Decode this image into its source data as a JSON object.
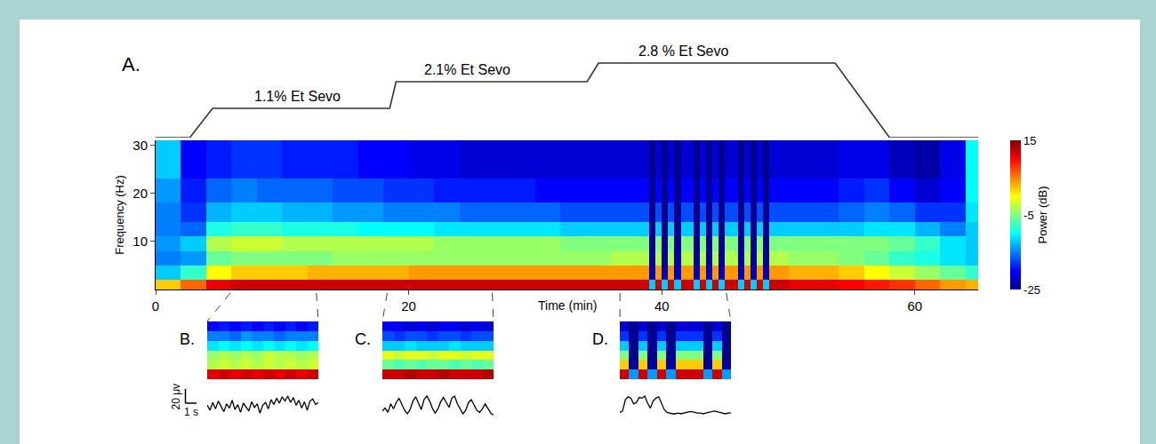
{
  "chart_data": [
    {
      "type": "heatmap",
      "panel_label": "A.",
      "xlabel": "Time (min)",
      "ylabel": "Frequency (Hz)",
      "x_edges": [
        0,
        2,
        4,
        6,
        8,
        10,
        12,
        14,
        16,
        18,
        20,
        22,
        24,
        26,
        28,
        30,
        32,
        34,
        36,
        36.5,
        37,
        37.5,
        38,
        38.5,
        39,
        39.5,
        40,
        40.5,
        41,
        41.5,
        42,
        42.5,
        43,
        43.5,
        44,
        44.5,
        45,
        45.5,
        46,
        46.5,
        47,
        47.5,
        48,
        48.5,
        49,
        49.5,
        50,
        52,
        54,
        56,
        58,
        60,
        62,
        64,
        65
      ],
      "y_edges": [
        0,
        2,
        5,
        8,
        11,
        14,
        18,
        23,
        31
      ],
      "power_db": [
        [
          2,
          -12,
          -15,
          -14,
          -15,
          -15,
          -14,
          -12
        ],
        [
          6,
          -8,
          -14,
          -12,
          -16,
          -18,
          -19,
          -20
        ],
        [
          11,
          0,
          -6,
          -3,
          -9,
          -13,
          -16,
          -19
        ],
        [
          12,
          2,
          -5,
          -2,
          -8,
          -12,
          -15,
          -18
        ],
        [
          12,
          2,
          -5,
          -2,
          -8,
          -12,
          -16,
          -18
        ],
        [
          12,
          2,
          -5,
          -3,
          -9,
          -13,
          -16,
          -19
        ],
        [
          12,
          3,
          -5,
          -3,
          -9,
          -13,
          -16,
          -19
        ],
        [
          12,
          3,
          -4,
          -3,
          -9,
          -14,
          -17,
          -19
        ],
        [
          12,
          3,
          -4,
          -3,
          -10,
          -14,
          -17,
          -20
        ],
        [
          12,
          3,
          -4,
          -3,
          -10,
          -15,
          -18,
          -20
        ],
        [
          12,
          4,
          -4,
          -3,
          -10,
          -15,
          -18,
          -21
        ],
        [
          12,
          4,
          -4,
          -4,
          -11,
          -15,
          -19,
          -21
        ],
        [
          12,
          4,
          -4,
          -4,
          -11,
          -16,
          -19,
          -22
        ],
        [
          12,
          4,
          -4,
          -4,
          -11,
          -16,
          -19,
          -22
        ],
        [
          12,
          4,
          -4,
          -4,
          -11,
          -16,
          -19,
          -22
        ],
        [
          12,
          4,
          -4,
          -4,
          -11,
          -16,
          -20,
          -22
        ],
        [
          12,
          4,
          -4,
          -5,
          -12,
          -17,
          -20,
          -22
        ],
        [
          12,
          4,
          -4,
          -5,
          -12,
          -17,
          -20,
          -22
        ],
        [
          12,
          4,
          -3,
          -5,
          -12,
          -17,
          -20,
          -22
        ],
        [
          12,
          4,
          -3,
          -5,
          -12,
          -17,
          -20,
          -22
        ],
        [
          12,
          4,
          -3,
          -5,
          -12,
          -17,
          -20,
          -22
        ],
        [
          12,
          4,
          -3,
          -5,
          -12,
          -17,
          -20,
          -22
        ],
        [
          12,
          4,
          -3,
          -5,
          -12,
          -17,
          -20,
          -22
        ],
        [
          12,
          4,
          -3,
          -5,
          -12,
          -17,
          -20,
          -22
        ],
        [
          -12,
          -23,
          -24,
          -25,
          -25,
          -25,
          -25,
          -25
        ],
        [
          12,
          4,
          -3,
          -5,
          -12,
          -17,
          -20,
          -22
        ],
        [
          -12,
          -23,
          -24,
          -25,
          -25,
          -25,
          -25,
          -25
        ],
        [
          12,
          4,
          -3,
          -5,
          -12,
          -17,
          -20,
          -22
        ],
        [
          -12,
          -23,
          -24,
          -25,
          -25,
          -25,
          -25,
          -25
        ],
        [
          12,
          4,
          -3,
          -5,
          -12,
          -17,
          -20,
          -22
        ],
        [
          12,
          4,
          -3,
          -5,
          -12,
          -17,
          -20,
          -22
        ],
        [
          -12,
          -23,
          -24,
          -25,
          -25,
          -25,
          -25,
          -25
        ],
        [
          12,
          4,
          -3,
          -5,
          -12,
          -17,
          -20,
          -22
        ],
        [
          -12,
          -23,
          -24,
          -25,
          -25,
          -25,
          -25,
          -25
        ],
        [
          12,
          4,
          -3,
          -5,
          -12,
          -17,
          -20,
          -22
        ],
        [
          -12,
          -23,
          -24,
          -25,
          -25,
          -25,
          -25,
          -25
        ],
        [
          12,
          4,
          -3,
          -5,
          -12,
          -17,
          -20,
          -22
        ],
        [
          12,
          4,
          -3,
          -5,
          -12,
          -17,
          -20,
          -22
        ],
        [
          -12,
          -23,
          -24,
          -25,
          -25,
          -25,
          -25,
          -25
        ],
        [
          12,
          4,
          -3,
          -5,
          -12,
          -17,
          -20,
          -22
        ],
        [
          -12,
          -23,
          -24,
          -25,
          -25,
          -25,
          -25,
          -25
        ],
        [
          12,
          4,
          -3,
          -5,
          -12,
          -17,
          -20,
          -22
        ],
        [
          -12,
          -23,
          -24,
          -25,
          -25,
          -25,
          -25,
          -25
        ],
        [
          12,
          4,
          -3,
          -5,
          -12,
          -17,
          -20,
          -22
        ],
        [
          12,
          4,
          -3,
          -5,
          -12,
          -17,
          -20,
          -22
        ],
        [
          12,
          4,
          -3,
          -5,
          -12,
          -17,
          -20,
          -22
        ],
        [
          11,
          3,
          -4,
          -5,
          -12,
          -17,
          -20,
          -22
        ],
        [
          11,
          3,
          -4,
          -5,
          -12,
          -17,
          -20,
          -22
        ],
        [
          10,
          2,
          -5,
          -5,
          -12,
          -16,
          -19,
          -21
        ],
        [
          9,
          0,
          -6,
          -5,
          -11,
          -15,
          -18,
          -21
        ],
        [
          8,
          -2,
          -8,
          -6,
          -11,
          -16,
          -20,
          -23
        ],
        [
          6,
          -4,
          -9,
          -8,
          -13,
          -18,
          -22,
          -24
        ],
        [
          4,
          -6,
          -11,
          -11,
          -15,
          -18,
          -20,
          -21
        ],
        [
          3,
          -8,
          -12,
          -12,
          -12,
          -11,
          -10,
          -10
        ]
      ],
      "xlim": [
        0,
        65
      ],
      "xticks": [
        0,
        20,
        40,
        60
      ],
      "ylim": [
        0,
        31
      ],
      "yticks": [
        10,
        20,
        30
      ],
      "colorbar": {
        "label": "Power (dB)",
        "zlim": [
          -25,
          15
        ],
        "zticks": [
          -25,
          -5,
          15
        ]
      },
      "concentration": {
        "type": "line",
        "color": "#333333",
        "tick_labels": false,
        "x": [
          0,
          2.7,
          4.5,
          18.5,
          19.0,
          34.1,
          35.0,
          53.7,
          58.0,
          65
        ],
        "values": [
          0,
          0,
          1.1,
          1.1,
          2.1,
          2.1,
          2.8,
          2.8,
          0,
          0
        ],
        "ylim": [
          0,
          2.9
        ],
        "annotations": [
          {
            "text": "1.1% Et Sevo",
            "x": 11.2,
            "y": 1.1
          },
          {
            "text": "2.1% Et Sevo",
            "x": 24.6,
            "y": 2.1
          },
          {
            "text": "2.8 % Et Sevo",
            "x": 41.7,
            "y": 2.8
          }
        ]
      }
    },
    {
      "type": "heatmap",
      "panel_label": "B.",
      "window": [
        5.9,
        12.7
      ],
      "tick_labels": false,
      "power_db": [
        [
          11,
          -3,
          -4,
          -11,
          -15,
          -20
        ],
        [
          12,
          -2,
          -3,
          -10,
          -15,
          -19
        ],
        [
          11,
          -3,
          -4,
          -11,
          -16,
          -20
        ],
        [
          12,
          -2,
          -3,
          -10,
          -14,
          -19
        ],
        [
          11,
          -3,
          -4,
          -11,
          -15,
          -20
        ],
        [
          12,
          -2,
          -2,
          -10,
          -15,
          -19
        ],
        [
          11,
          -3,
          -3,
          -11,
          -16,
          -20
        ],
        [
          12,
          -2,
          -3,
          -10,
          -15,
          -19
        ],
        [
          11,
          -3,
          -4,
          -11,
          -15,
          -20
        ],
        [
          12,
          -2,
          -3,
          -10,
          -15,
          -19
        ]
      ],
      "trace": {
        "type": "line",
        "color": "#000000",
        "tick_labels": false,
        "xlim": [
          0,
          10
        ],
        "ylim": [
          -25,
          25
        ],
        "x": [
          0,
          0.25,
          0.5,
          0.75,
          1,
          1.25,
          1.5,
          1.75,
          2,
          2.25,
          2.5,
          2.75,
          3,
          3.25,
          3.5,
          3.75,
          4,
          4.25,
          4.5,
          4.75,
          5,
          5.25,
          5.5,
          5.75,
          6,
          6.25,
          6.5,
          6.75,
          7,
          7.25,
          7.5,
          7.75,
          8,
          8.25,
          8.5,
          8.75,
          9,
          9.25,
          9.5,
          9.75,
          10
        ],
        "values": [
          2,
          -5,
          6,
          -3,
          8,
          1,
          -7,
          4,
          -2,
          9,
          -4,
          3,
          -8,
          5,
          0,
          -6,
          7,
          -1,
          4,
          -9,
          2,
          6,
          -3,
          10,
          3,
          12,
          5,
          14,
          8,
          15,
          6,
          13,
          2,
          9,
          -2,
          7,
          -5,
          8,
          11,
          3,
          6
        ]
      },
      "scale_bar": {
        "x": 1,
        "x_label": "1 s",
        "y": 20,
        "y_label": "20 μv"
      }
    },
    {
      "type": "heatmap",
      "panel_label": "C.",
      "window": [
        18.3,
        26.6
      ],
      "tick_labels": false,
      "power_db": [
        [
          12,
          -6,
          -1,
          -12,
          -17,
          -21
        ],
        [
          12,
          -7,
          -2,
          -12,
          -18,
          -21
        ],
        [
          13,
          -6,
          -1,
          -11,
          -17,
          -22
        ],
        [
          12,
          -7,
          -1,
          -12,
          -17,
          -21
        ],
        [
          12,
          -6,
          -2,
          -12,
          -18,
          -22
        ],
        [
          13,
          -6,
          -1,
          -12,
          -17,
          -21
        ],
        [
          12,
          -7,
          -1,
          -11,
          -17,
          -21
        ],
        [
          12,
          -6,
          -2,
          -12,
          -18,
          -22
        ],
        [
          12,
          -7,
          -1,
          -12,
          -17,
          -21
        ],
        [
          13,
          -6,
          -1,
          -12,
          -17,
          -22
        ]
      ],
      "trace": {
        "type": "line",
        "color": "#000000",
        "tick_labels": false,
        "xlim": [
          0,
          10
        ],
        "ylim": [
          -25,
          25
        ],
        "x": [
          0,
          0.25,
          0.5,
          0.75,
          1,
          1.25,
          1.5,
          1.75,
          2,
          2.25,
          2.5,
          2.75,
          3,
          3.25,
          3.5,
          3.75,
          4,
          4.25,
          4.5,
          4.75,
          5,
          5.25,
          5.5,
          5.75,
          6,
          6.25,
          6.5,
          6.75,
          7,
          7.25,
          7.5,
          7.75,
          8,
          8.25,
          8.5,
          8.75,
          9,
          9.25,
          9.5,
          9.75,
          10
        ],
        "values": [
          -6,
          -2,
          -8,
          4,
          -3,
          6,
          12,
          3,
          -5,
          -10,
          -4,
          8,
          14,
          5,
          -4,
          10,
          15,
          8,
          -2,
          -9,
          -3,
          7,
          13,
          6,
          -1,
          12,
          15,
          4,
          -3,
          -10,
          -5,
          6,
          10,
          2,
          -5,
          -8,
          -3,
          4,
          -2,
          -9,
          -12
        ]
      }
    },
    {
      "type": "heatmap",
      "panel_label": "D.",
      "window": [
        36.7,
        45.1
      ],
      "tick_labels": false,
      "power_db": [
        [
          12,
          2,
          -5,
          -12,
          -18,
          -22
        ],
        [
          -14,
          -24,
          -25,
          -25,
          -25,
          -25
        ],
        [
          12,
          2,
          -5,
          -12,
          -18,
          -22
        ],
        [
          -14,
          -24,
          -25,
          -25,
          -25,
          -25
        ],
        [
          12,
          2,
          -5,
          -12,
          -18,
          -22
        ],
        [
          -14,
          -24,
          -25,
          -25,
          -25,
          -25
        ],
        [
          12,
          2,
          -5,
          -12,
          -18,
          -22
        ],
        [
          12,
          2,
          -5,
          -12,
          -18,
          -22
        ],
        [
          12,
          2,
          -5,
          -12,
          -18,
          -22
        ],
        [
          -14,
          -24,
          -25,
          -25,
          -25,
          -25
        ],
        [
          12,
          2,
          -5,
          -12,
          -18,
          -22
        ],
        [
          -14,
          -24,
          -25,
          -25,
          -25,
          -25
        ]
      ],
      "trace": {
        "type": "line",
        "color": "#000000",
        "tick_labels": false,
        "xlim": [
          0,
          10
        ],
        "ylim": [
          -25,
          25
        ],
        "x": [
          0,
          0.25,
          0.5,
          0.75,
          1,
          1.25,
          1.5,
          1.75,
          2,
          2.25,
          2.5,
          2.75,
          3,
          3.25,
          3.5,
          3.75,
          4,
          4.25,
          4.5,
          4.75,
          5,
          5.25,
          5.5,
          5.75,
          6,
          6.25,
          6.5,
          6.75,
          7,
          7.25,
          7.5,
          7.75,
          8,
          8.25,
          8.5,
          8.75,
          9,
          9.25,
          9.5,
          9.75,
          10
        ],
        "values": [
          -8,
          -6,
          10,
          14,
          12,
          4,
          6,
          13,
          12,
          15,
          5,
          -2,
          8,
          12,
          14,
          4,
          -4,
          -8,
          -9,
          -10,
          -10,
          -9,
          -10,
          -9,
          -8,
          -7,
          -7,
          -8,
          -9,
          -9,
          -10,
          -9,
          -8,
          -7,
          -6,
          -7,
          -8,
          -9,
          -10,
          -9,
          -9
        ]
      }
    }
  ]
}
